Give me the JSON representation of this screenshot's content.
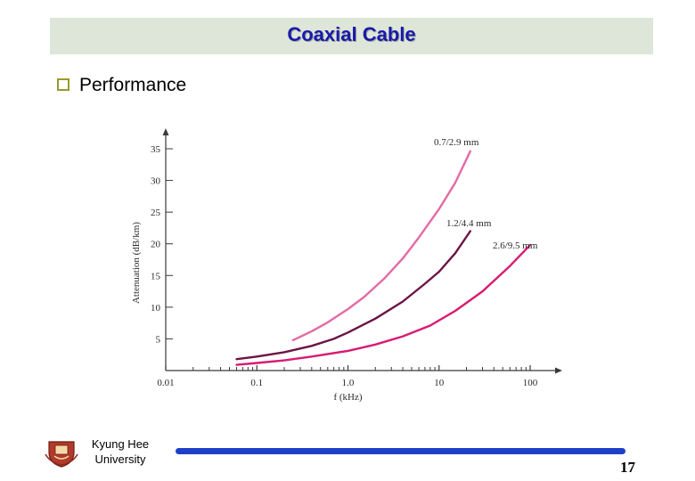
{
  "slide": {
    "title": "Coaxial Cable",
    "heading": "Performance",
    "footer_org": "Kyung Hee University",
    "page_number": "17",
    "colors": {
      "title": "#1a1aa8",
      "title_bar": "#dde6d8",
      "footer_bar": "#1e3fc8",
      "bullet": "#9a9a2a"
    }
  },
  "chart_data": {
    "type": "line",
    "title": "",
    "xlabel": "f (kHz)",
    "ylabel": "Attenuation (dB/km)",
    "xscale": "log",
    "xlim": [
      0.01,
      100
    ],
    "ylim": [
      0,
      35
    ],
    "xticks": [
      "0.01",
      "0.1",
      "1.0",
      "10",
      "100"
    ],
    "yticks": [
      "5",
      "10",
      "15",
      "20",
      "25",
      "30",
      "35"
    ],
    "grid": false,
    "series": [
      {
        "name": "0.7/2.9 mm",
        "color": "#e46aa6",
        "x": [
          0.25,
          0.4,
          0.6,
          1,
          1.5,
          2.5,
          4,
          6,
          10,
          15,
          22
        ],
        "y": [
          4.8,
          6.2,
          7.6,
          9.7,
          11.6,
          14.5,
          17.7,
          21.0,
          25.5,
          29.6,
          34.6
        ]
      },
      {
        "name": "1.2/4.4 mm",
        "color": "#6b1446",
        "x": [
          0.06,
          0.1,
          0.2,
          0.4,
          0.7,
          1,
          2,
          4,
          7,
          10,
          15,
          22
        ],
        "y": [
          1.8,
          2.2,
          2.9,
          3.9,
          5.0,
          6.0,
          8.2,
          10.9,
          13.7,
          15.6,
          18.5,
          22.0
        ]
      },
      {
        "name": "2.6/9.5 mm",
        "color": "#d81b72",
        "x": [
          0.06,
          0.1,
          0.2,
          0.4,
          1,
          2,
          4,
          8,
          15,
          30,
          60,
          100
        ],
        "y": [
          0.9,
          1.2,
          1.6,
          2.2,
          3.1,
          4.1,
          5.4,
          7.1,
          9.4,
          12.5,
          16.5,
          19.8
        ]
      }
    ]
  }
}
